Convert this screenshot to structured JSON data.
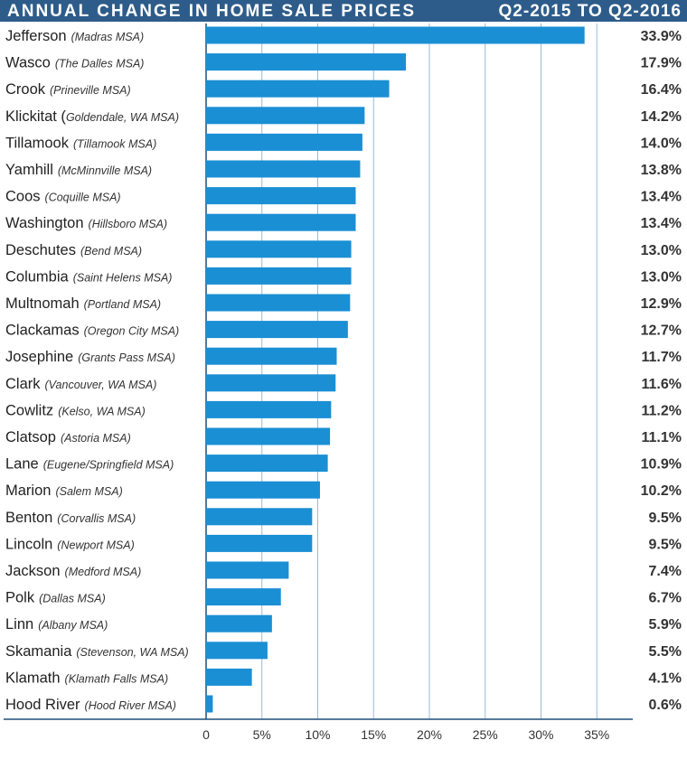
{
  "header": {
    "title": "ANNUAL CHANGE IN HOME SALE PRICES",
    "period": "Q2-2015 TO Q2-2016"
  },
  "colors": {
    "header_bg": "#2e5c8a",
    "bar": "#1a8fd4",
    "grid": "#9dbad1",
    "axis": "#1f4e79"
  },
  "chart_data": {
    "type": "bar",
    "orientation": "horizontal",
    "title": "ANNUAL CHANGE IN HOME SALE PRICES",
    "subtitle": "Q2-2015 TO Q2-2016",
    "categories": [
      {
        "name": "Jefferson",
        "msa": "(Madras MSA)"
      },
      {
        "name": "Wasco",
        "msa": "(The Dalles MSA)"
      },
      {
        "name": "Crook",
        "msa": "(Prineville MSA)"
      },
      {
        "name": "Klickitat (",
        "msa": "Goldendale, WA MSA)"
      },
      {
        "name": "Tillamook",
        "msa": "(Tillamook MSA)"
      },
      {
        "name": "Yamhill",
        "msa": "(McMinnville MSA)"
      },
      {
        "name": "Coos",
        "msa": "(Coquille MSA)"
      },
      {
        "name": "Washington",
        "msa": "(Hillsboro MSA)"
      },
      {
        "name": "Deschutes",
        "msa": "(Bend MSA)"
      },
      {
        "name": "Columbia",
        "msa": "(Saint Helens MSA)"
      },
      {
        "name": "Multnomah",
        "msa": "(Portland MSA)"
      },
      {
        "name": "Clackamas",
        "msa": "(Oregon City MSA)"
      },
      {
        "name": "Josephine",
        "msa": "(Grants Pass MSA)"
      },
      {
        "name": "Clark",
        "msa": "(Vancouver, WA MSA)"
      },
      {
        "name": "Cowlitz",
        "msa": "(Kelso, WA MSA)"
      },
      {
        "name": "Clatsop",
        "msa": "(Astoria MSA)"
      },
      {
        "name": "Lane",
        "msa": "(Eugene/Springfield MSA)"
      },
      {
        "name": "Marion",
        "msa": "(Salem MSA)"
      },
      {
        "name": "Benton",
        "msa": "(Corvallis MSA)"
      },
      {
        "name": "Lincoln",
        "msa": "(Newport MSA)"
      },
      {
        "name": "Jackson",
        "msa": "(Medford MSA)"
      },
      {
        "name": "Polk",
        "msa": "(Dallas MSA)"
      },
      {
        "name": "Linn",
        "msa": "(Albany MSA)"
      },
      {
        "name": "Skamania",
        "msa": "(Stevenson, WA MSA)"
      },
      {
        "name": "Klamath",
        "msa": "(Klamath Falls MSA)"
      },
      {
        "name": "Hood River",
        "msa": "(Hood River MSA)"
      }
    ],
    "values": [
      33.9,
      17.9,
      16.4,
      14.2,
      14.0,
      13.8,
      13.4,
      13.4,
      13.0,
      13.0,
      12.9,
      12.7,
      11.7,
      11.6,
      11.2,
      11.1,
      10.9,
      10.2,
      9.5,
      9.5,
      7.4,
      6.7,
      5.9,
      5.5,
      4.1,
      0.6
    ],
    "value_labels": [
      "33.9%",
      "17.9%",
      "16.4%",
      "14.2%",
      "14.0%",
      "13.8%",
      "13.4%",
      "13.4%",
      "13.0%",
      "13.0%",
      "12.9%",
      "12.7%",
      "11.7%",
      "11.6%",
      "11.2%",
      "11.1%",
      "10.9%",
      "10.2%",
      "9.5%",
      "9.5%",
      "7.4%",
      "6.7%",
      "5.9%",
      "5.5%",
      "4.1%",
      "0.6%"
    ],
    "xticks": [
      0,
      5,
      10,
      15,
      20,
      25,
      30,
      35
    ],
    "xtick_labels": [
      "0",
      "5%",
      "10%",
      "15%",
      "20%",
      "25%",
      "30%",
      "35%"
    ],
    "xlim": [
      0,
      37.5
    ],
    "grid": true
  }
}
